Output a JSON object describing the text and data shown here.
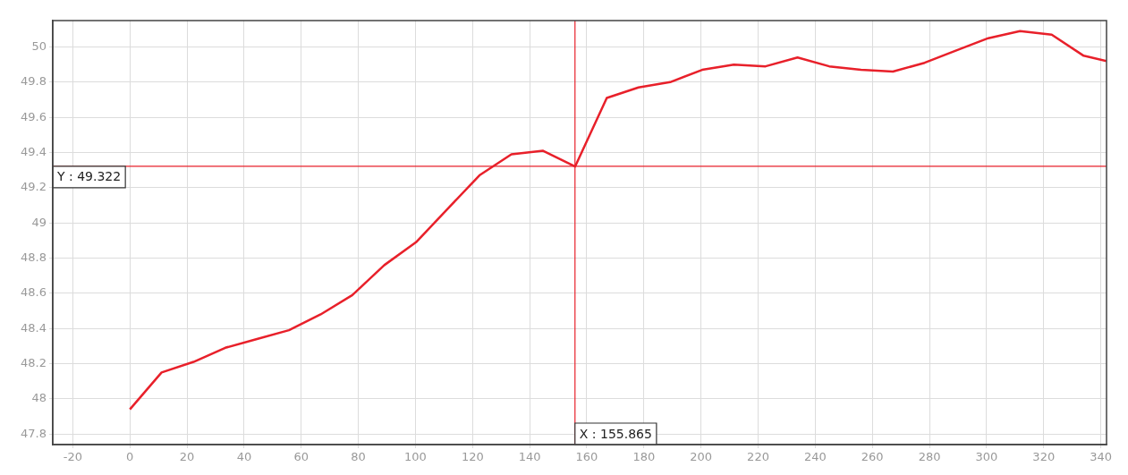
{
  "chart_data": {
    "type": "line",
    "x": [
      0,
      11.1,
      22.3,
      33.4,
      44.5,
      55.7,
      66.8,
      77.9,
      89.1,
      100.2,
      111.3,
      122.4,
      133.6,
      144.7,
      155.9,
      167,
      178.1,
      189.2,
      200.4,
      211.5,
      222.6,
      233.8,
      244.9,
      256,
      267.2,
      278.3,
      289.4,
      300.6,
      311.7,
      322.8,
      334,
      342
    ],
    "series": [
      {
        "color": "#e8202a",
        "values": [
          47.94,
          48.15,
          48.21,
          48.29,
          48.34,
          48.39,
          48.48,
          48.59,
          48.76,
          48.89,
          49.08,
          49.27,
          49.39,
          49.41,
          49.32,
          49.71,
          49.77,
          49.8,
          49.87,
          49.9,
          49.89,
          49.94,
          49.89,
          49.87,
          49.86,
          49.91,
          49.98,
          50.05,
          50.09,
          50.07,
          49.95,
          49.92
        ]
      }
    ],
    "xlim": [
      -27,
      342
    ],
    "xticks": [
      -20,
      0,
      20,
      40,
      60,
      80,
      100,
      120,
      140,
      160,
      180,
      200,
      220,
      240,
      260,
      280,
      300,
      320,
      340
    ],
    "ylim": [
      47.74,
      50.15
    ],
    "yticks": [
      47.8,
      48,
      48.2,
      48.4,
      48.6,
      48.8,
      49,
      49.2,
      49.4,
      49.6,
      49.8,
      50
    ],
    "ref_lines": [
      {
        "axis": "x",
        "value": 155.865,
        "label": "X : 155.865",
        "color": "#e8202a"
      },
      {
        "axis": "y",
        "value": 49.322,
        "label": "Y : 49.322",
        "color": "#e8202a"
      }
    ],
    "grid": true,
    "legend": false,
    "marker": "none",
    "line_style": "solid"
  }
}
